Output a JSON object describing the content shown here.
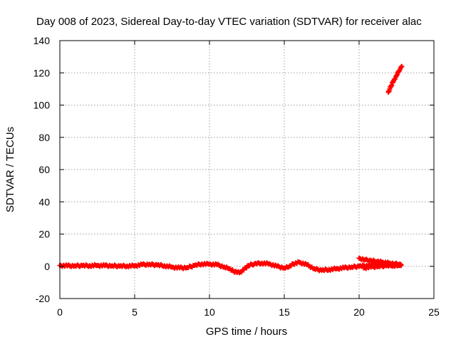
{
  "chart_data": {
    "type": "scatter",
    "title": "Day 008 of 2023, Sidereal Day-to-day VTEC variation (SDTVAR) for receiver alac",
    "xlabel": "GPS time / hours",
    "ylabel": "SDTVAR / TECUs",
    "xlim": [
      0,
      25
    ],
    "ylim": [
      -20,
      140
    ],
    "xticks": [
      0,
      5,
      10,
      15,
      20,
      25
    ],
    "yticks": [
      -20,
      0,
      20,
      40,
      60,
      80,
      100,
      120,
      140
    ],
    "grid": true,
    "legend": "none",
    "color": "#ff0000",
    "marker": "plus",
    "series": [
      {
        "x": [
          0.0,
          0.5,
          1.0,
          1.5,
          2.0,
          2.5,
          3.0,
          3.5,
          4.0,
          4.5,
          5.0,
          5.5,
          6.0,
          6.5,
          7.0,
          7.5,
          8.0,
          8.5,
          9.0,
          9.5,
          10.0,
          10.5,
          11.0,
          11.3,
          11.6,
          12.0,
          12.3,
          12.6,
          13.0,
          13.5,
          14.0,
          14.5,
          15.0,
          15.3,
          15.6,
          16.0,
          16.5,
          17.0,
          17.5,
          18.0,
          18.5,
          19.0,
          19.5,
          20.0,
          20.5,
          21.0,
          21.5,
          22.0,
          22.5,
          22.8
        ],
        "y": [
          0.5,
          0.3,
          0.3,
          0.4,
          0.4,
          0.5,
          0.4,
          0.3,
          0.1,
          0.2,
          0.3,
          1.0,
          1.2,
          0.8,
          0.3,
          -0.5,
          -1.0,
          -0.8,
          0.5,
          1.5,
          1.3,
          1.0,
          -0.5,
          -1.5,
          -3.0,
          -4.0,
          -2.0,
          0.5,
          1.5,
          2.0,
          1.5,
          0.0,
          -1.0,
          -0.5,
          1.5,
          2.5,
          1.0,
          -1.5,
          -2.5,
          -2.0,
          -1.5,
          -1.0,
          -0.5,
          0.0,
          0.5,
          1.0,
          1.2,
          1.0,
          0.8,
          0.8
        ]
      },
      {
        "x": [
          20.0,
          20.4,
          20.8,
          21.2,
          21.6,
          22.0,
          22.4,
          22.8
        ],
        "y": [
          5.0,
          4.0,
          3.5,
          3.0,
          2.5,
          2.0,
          1.5,
          1.0
        ]
      },
      {
        "x": [
          20.3,
          20.8,
          21.3,
          21.8,
          22.3,
          22.8
        ],
        "y": [
          -1.0,
          -0.5,
          0.0,
          0.3,
          0.5,
          0.5
        ]
      },
      {
        "x": [
          21.95,
          22.05,
          22.15,
          22.25,
          22.35,
          22.45,
          22.55,
          22.65,
          22.75,
          22.85
        ],
        "y": [
          108,
          110,
          112,
          114,
          116,
          117.5,
          119,
          121,
          122.5,
          124
        ]
      }
    ]
  }
}
